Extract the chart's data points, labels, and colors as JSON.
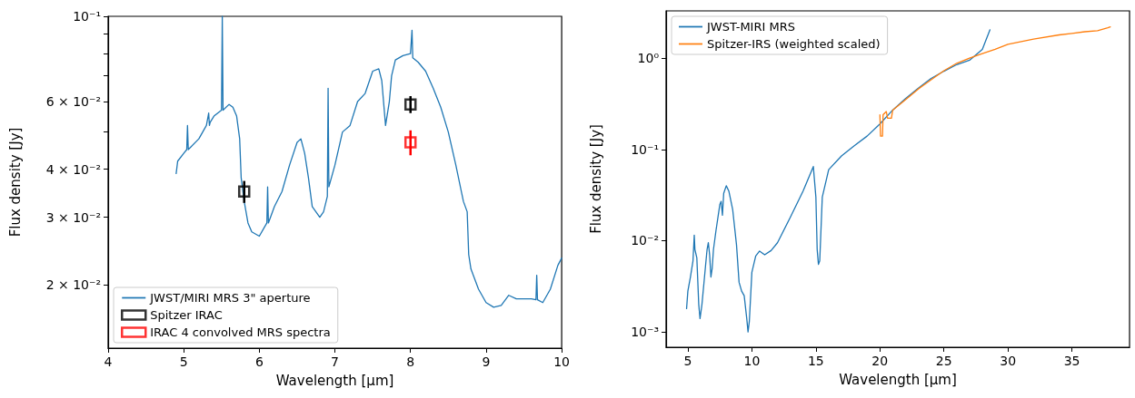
{
  "chart_data": [
    {
      "type": "line",
      "xlabel": "Wavelength [μm]",
      "ylabel": "Flux density [Jy]",
      "log": "y",
      "grid": false,
      "legend": "bottom left",
      "xlim": [
        4,
        10
      ],
      "xticks": [
        4,
        5,
        6,
        7,
        8,
        9,
        10
      ],
      "ylim": [
        0.0137,
        0.1
      ],
      "yticks": [
        {
          "value": 0.02,
          "label": "2 × 10⁻²"
        },
        {
          "value": 0.03,
          "label": "3 × 10⁻²"
        },
        {
          "value": 0.04,
          "label": "4 × 10⁻²"
        },
        {
          "value": 0.05,
          "label": null
        },
        {
          "value": 0.06,
          "label": "6 × 10⁻²"
        },
        {
          "value": 0.07,
          "label": null
        },
        {
          "value": 0.08,
          "label": null
        },
        {
          "value": 0.09,
          "label": null
        },
        {
          "value": 0.1,
          "label": "10⁻¹"
        }
      ],
      "series": [
        {
          "name": "JWST/MIRI MRS 3\" aperture",
          "color": "#1f77b4",
          "marker": "none",
          "x": [
            4.9,
            4.92,
            5.0,
            5.04,
            5.05,
            5.06,
            5.2,
            5.3,
            5.33,
            5.34,
            5.35,
            5.4,
            5.5,
            5.51,
            5.52,
            5.6,
            5.65,
            5.7,
            5.74,
            5.76,
            5.8,
            5.85,
            5.9,
            6.0,
            6.1,
            6.11,
            6.12,
            6.2,
            6.3,
            6.4,
            6.5,
            6.55,
            6.6,
            6.65,
            6.7,
            6.8,
            6.85,
            6.9,
            6.91,
            6.92,
            7.0,
            7.1,
            7.2,
            7.3,
            7.4,
            7.5,
            7.58,
            7.62,
            7.67,
            7.72,
            7.75,
            7.8,
            7.9,
            8.0,
            8.02,
            8.03,
            8.1,
            8.2,
            8.3,
            8.4,
            8.5,
            8.6,
            8.7,
            8.75,
            8.77,
            8.8,
            8.9,
            9.0,
            9.1,
            9.2,
            9.3,
            9.4,
            9.5,
            9.6,
            9.66,
            9.67,
            9.68,
            9.75,
            9.85,
            9.95,
            10.0
          ],
          "values": [
            0.039,
            0.042,
            0.044,
            0.045,
            0.052,
            0.045,
            0.048,
            0.052,
            0.056,
            0.052,
            0.053,
            0.055,
            0.057,
            0.1,
            0.057,
            0.059,
            0.058,
            0.055,
            0.048,
            0.038,
            0.033,
            0.029,
            0.0275,
            0.0268,
            0.029,
            0.036,
            0.029,
            0.032,
            0.035,
            0.041,
            0.047,
            0.048,
            0.044,
            0.038,
            0.032,
            0.03,
            0.031,
            0.034,
            0.065,
            0.036,
            0.041,
            0.05,
            0.052,
            0.06,
            0.063,
            0.072,
            0.073,
            0.068,
            0.052,
            0.06,
            0.07,
            0.077,
            0.079,
            0.08,
            0.092,
            0.078,
            0.076,
            0.072,
            0.065,
            0.058,
            0.05,
            0.041,
            0.033,
            0.031,
            0.024,
            0.022,
            0.0195,
            0.018,
            0.0175,
            0.0177,
            0.0188,
            0.0184,
            0.0184,
            0.0184,
            0.0183,
            0.0212,
            0.0183,
            0.018,
            0.0195,
            0.0225,
            0.0235
          ]
        },
        {
          "name": "Spitzer IRAC",
          "type": "scatter",
          "color": "#000000",
          "marker": "square",
          "x": [
            5.8,
            8.0
          ],
          "values": [
            0.035,
            0.059
          ],
          "errors": [
            0.0023,
            0.003
          ]
        },
        {
          "name": "IRAC 4 convolved MRS spectra",
          "type": "scatter",
          "color": "#ff0000",
          "marker": "square",
          "x": [
            8.0
          ],
          "values": [
            0.047
          ],
          "errors": [
            0.0035
          ]
        }
      ]
    },
    {
      "type": "line",
      "xlabel": "Wavelength [μm]",
      "ylabel": "Flux density [Jy]",
      "log": "y",
      "grid": false,
      "legend": "top left",
      "xlim": [
        3.3,
        39.5
      ],
      "xticks": [
        5,
        10,
        15,
        20,
        25,
        30,
        35
      ],
      "ylim": [
        0.00068,
        3.3
      ],
      "yticks": [
        {
          "value": 0.001,
          "label": "10⁻³"
        },
        {
          "value": 0.01,
          "label": "10⁻²"
        },
        {
          "value": 0.1,
          "label": "10⁻¹"
        },
        {
          "value": 1,
          "label": "10⁰"
        }
      ],
      "series": [
        {
          "name": "JWST-MIRI MRS",
          "color": "#1f77b4",
          "marker": "none",
          "x": [
            4.9,
            5.0,
            5.2,
            5.4,
            5.5,
            5.55,
            5.7,
            5.85,
            5.95,
            6.1,
            6.3,
            6.5,
            6.6,
            6.7,
            6.8,
            6.9,
            7.0,
            7.2,
            7.5,
            7.6,
            7.7,
            7.8,
            8.0,
            8.2,
            8.5,
            8.8,
            9.0,
            9.2,
            9.4,
            9.6,
            9.7,
            9.8,
            10.0,
            10.3,
            10.6,
            11.0,
            11.5,
            12,
            13,
            14,
            14.8,
            15.0,
            15.1,
            15.2,
            15.3,
            15.5,
            16,
            17,
            18,
            19,
            20,
            21,
            22,
            23,
            24,
            25,
            26,
            27,
            28,
            28.6
          ],
          "values": [
            0.0018,
            0.0028,
            0.004,
            0.006,
            0.0115,
            0.008,
            0.0065,
            0.002,
            0.0014,
            0.002,
            0.004,
            0.008,
            0.0095,
            0.007,
            0.004,
            0.005,
            0.008,
            0.013,
            0.025,
            0.027,
            0.019,
            0.033,
            0.04,
            0.035,
            0.022,
            0.009,
            0.0035,
            0.0028,
            0.0025,
            0.0014,
            0.001,
            0.0013,
            0.0045,
            0.0068,
            0.0077,
            0.007,
            0.0078,
            0.0095,
            0.018,
            0.035,
            0.065,
            0.03,
            0.008,
            0.0055,
            0.006,
            0.03,
            0.06,
            0.085,
            0.11,
            0.14,
            0.19,
            0.27,
            0.36,
            0.47,
            0.6,
            0.72,
            0.85,
            0.95,
            1.25,
            2.05
          ]
        },
        {
          "name": "Spitzer-IRS (weighted scaled)",
          "color": "#ff7f0e",
          "marker": "none",
          "x": [
            20.0,
            20.05,
            20.2,
            20.25,
            20.5,
            20.6,
            20.9,
            21,
            22,
            23,
            24,
            25,
            26,
            27,
            28,
            29,
            30,
            32,
            34,
            35,
            36,
            37,
            37.8,
            38
          ],
          "values": [
            0.24,
            0.14,
            0.14,
            0.24,
            0.26,
            0.22,
            0.22,
            0.27,
            0.35,
            0.46,
            0.58,
            0.73,
            0.88,
            1.0,
            1.12,
            1.25,
            1.42,
            1.62,
            1.8,
            1.87,
            1.95,
            2.0,
            2.15,
            2.2
          ]
        }
      ]
    }
  ]
}
